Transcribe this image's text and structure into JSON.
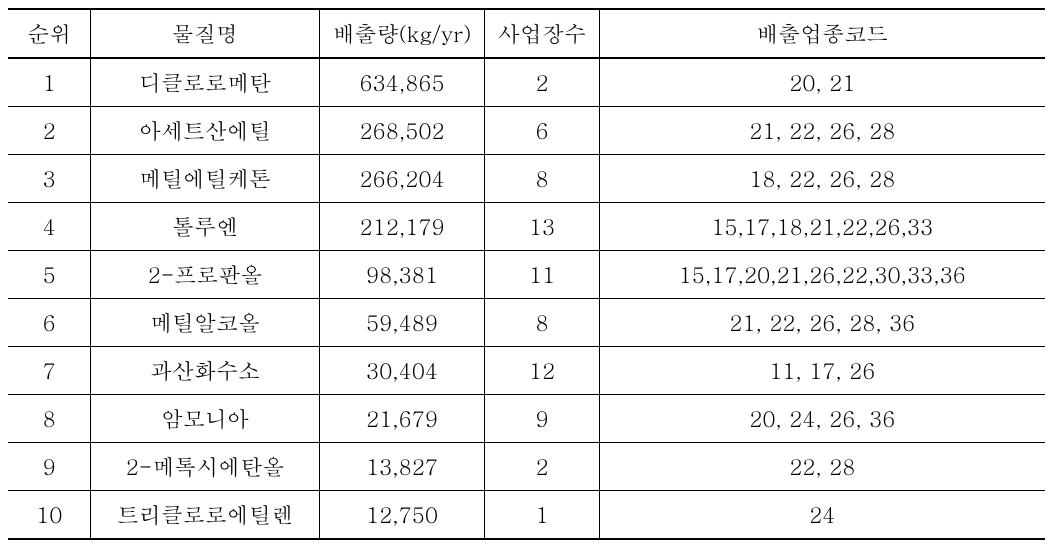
{
  "table": {
    "columns": {
      "rank": "순위",
      "substance": "물질명",
      "emission": "배출량(kg/yr)",
      "sites": "사업장수",
      "codes": "배출업종코드"
    },
    "rows": [
      {
        "rank": "1",
        "substance": "디클로로메탄",
        "emission": "634,865",
        "sites": "2",
        "codes": "20, 21"
      },
      {
        "rank": "2",
        "substance": "아세트산에틸",
        "emission": "268,502",
        "sites": "6",
        "codes": "21, 22, 26, 28"
      },
      {
        "rank": "3",
        "substance": "메틸에틸케톤",
        "emission": "266,204",
        "sites": "8",
        "codes": "18, 22, 26, 28"
      },
      {
        "rank": "4",
        "substance": "톨루엔",
        "emission": "212,179",
        "sites": "13",
        "codes": "15,17,18,21,22,26,33"
      },
      {
        "rank": "5",
        "substance": "2-프로판올",
        "emission": "98,381",
        "sites": "11",
        "codes": "15,17,20,21,26,22,30,33,36"
      },
      {
        "rank": "6",
        "substance": "메틸알코올",
        "emission": "59,489",
        "sites": "8",
        "codes": "21, 22, 26, 28, 36"
      },
      {
        "rank": "7",
        "substance": "과산화수소",
        "emission": "30,404",
        "sites": "12",
        "codes": "11, 17, 26"
      },
      {
        "rank": "8",
        "substance": "암모니아",
        "emission": "21,679",
        "sites": "9",
        "codes": "20, 24, 26, 36"
      },
      {
        "rank": "9",
        "substance": "2-메톡시에탄올",
        "emission": "13,827",
        "sites": "2",
        "codes": "22, 28"
      },
      {
        "rank": "10",
        "substance": "트리클로로에틸렌",
        "emission": "12,750",
        "sites": "1",
        "codes": "24"
      }
    ],
    "style": {
      "background_color": "#ffffff",
      "text_color": "#000000",
      "border_color": "#000000",
      "font_size": 22,
      "header_border_top_width": 2,
      "header_border_bottom_width": 2,
      "row_border_width": 1,
      "last_row_border_width": 2,
      "column_widths": {
        "rank": "8%",
        "substance": "22%",
        "emission": "16%",
        "sites": "11%",
        "codes": "43%"
      }
    }
  }
}
